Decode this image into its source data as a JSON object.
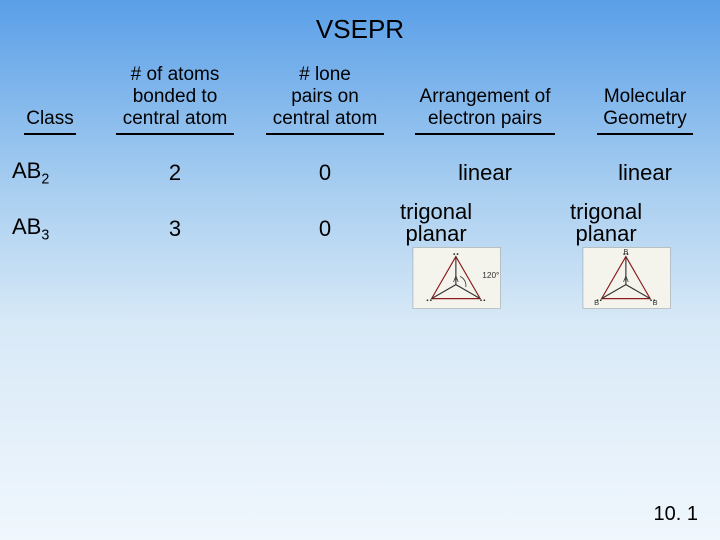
{
  "title": "VSEPR",
  "headers": {
    "class": "Class",
    "bonded": "# of atoms\nbonded to\ncentral atom",
    "lone": "# lone\npairs on\ncentral atom",
    "arrangement": "Arrangement of\nelectron pairs",
    "geometry": "Molecular\nGeometry"
  },
  "rows": [
    {
      "class_base": "AB",
      "class_sub": "2",
      "bonded": "2",
      "lone": "0",
      "arrangement": "linear",
      "geometry": "linear"
    },
    {
      "class_base": "AB",
      "class_sub": "3",
      "bonded": "3",
      "lone": "0",
      "arrangement": "trigonal\nplanar",
      "geometry": "trigonal\nplanar"
    }
  ],
  "diagram": {
    "angle_label": "120°",
    "center_label": "A",
    "outer_label": "B",
    "bg": "#f4f4ec",
    "triangle_stroke": "#8a1a1a",
    "bond_stroke": "#333333",
    "text_color": "#333333"
  },
  "footer": "10. 1",
  "underline_widths": {
    "class": 52,
    "bonded": 118,
    "lone": 118,
    "arrangement": 140,
    "geometry": 96
  }
}
